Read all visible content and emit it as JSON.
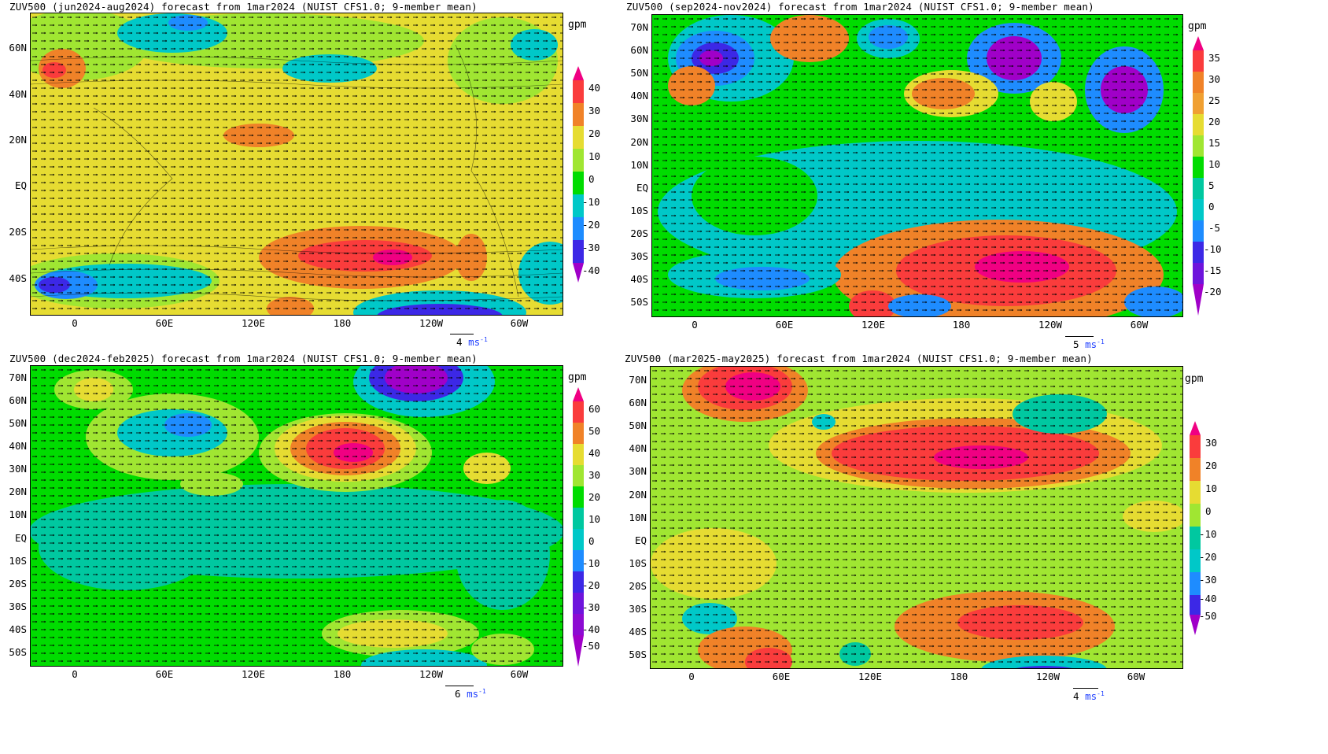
{
  "units_label": "gpm",
  "wind_unit": "ms",
  "wind_unit_exp": "-1",
  "panels": [
    {
      "title": "ZUV500 (jun2024-aug2024) forecast from 1mar2024 (NUIST CFS1.0; 9-member mean)",
      "lat_labels": [
        "60N",
        "40N",
        "20N",
        "EQ",
        "20S",
        "40S"
      ],
      "lon_labels": [
        "0",
        "60E",
        "120E",
        "180",
        "120W",
        "60W"
      ],
      "colorbar_labels": [
        "40",
        "30",
        "20",
        "10",
        "0",
        "-10",
        "-20",
        "-30",
        "-40"
      ],
      "wind_ref_value": "4",
      "colors": [
        "#a000c8",
        "#3c28e6",
        "#1e8cff",
        "#00c8c8",
        "#00dc00",
        "#a0e632",
        "#e6dc32",
        "#f08228",
        "#fa3c3c",
        "#f00082"
      ]
    },
    {
      "title": "ZUV500 (sep2024-nov2024) forecast from 1mar2024 (NUIST CFS1.0; 9-member mean)",
      "lat_labels": [
        "70N",
        "60N",
        "50N",
        "40N",
        "30N",
        "20N",
        "10N",
        "EQ",
        "10S",
        "20S",
        "30S",
        "40S",
        "50S"
      ],
      "lon_labels": [
        "0",
        "60E",
        "120E",
        "180",
        "120W",
        "60W"
      ],
      "colorbar_labels": [
        "35",
        "30",
        "25",
        "20",
        "15",
        "10",
        "5",
        "0",
        "-5",
        "-10",
        "-15",
        "-20"
      ],
      "wind_ref_value": "5",
      "colors": [
        "#a000c8",
        "#3c28e6",
        "#1e8cff",
        "#00c8c8",
        "#00dc00",
        "#a0e632",
        "#e6dc32",
        "#f08228",
        "#fa3c3c",
        "#f00082"
      ]
    },
    {
      "title": "ZUV500 (dec2024-feb2025) forecast from 1mar2024 (NUIST CFS1.0; 9-member mean)",
      "lat_labels": [
        "70N",
        "60N",
        "50N",
        "40N",
        "30N",
        "20N",
        "10N",
        "EQ",
        "10S",
        "20S",
        "30S",
        "40S",
        "50S"
      ],
      "lon_labels": [
        "0",
        "60E",
        "120E",
        "180",
        "120W",
        "60W"
      ],
      "colorbar_labels": [
        "60",
        "50",
        "40",
        "30",
        "20",
        "10",
        "0",
        "-10",
        "-20",
        "-30",
        "-40",
        "-50"
      ],
      "wind_ref_value": "6",
      "colors": [
        "#a000c8",
        "#3c28e6",
        "#1e8cff",
        "#00c8c8",
        "#00dc00",
        "#a0e632",
        "#e6dc32",
        "#f08228",
        "#fa3c3c",
        "#f00082"
      ]
    },
    {
      "title": "ZUV500 (mar2025-may2025) forecast from 1mar2024 (NUIST CFS1.0; 9-member mean)",
      "lat_labels": [
        "70N",
        "60N",
        "50N",
        "40N",
        "30N",
        "20N",
        "10N",
        "EQ",
        "10S",
        "20S",
        "30S",
        "40S",
        "50S"
      ],
      "lon_labels": [
        "0",
        "60E",
        "120E",
        "180",
        "120W",
        "60W"
      ],
      "colorbar_labels": [
        "30",
        "20",
        "10",
        "0",
        "-10",
        "-20",
        "-30",
        "-40",
        "-50"
      ],
      "wind_ref_value": "4",
      "colors": [
        "#a000c8",
        "#3c28e6",
        "#1e8cff",
        "#00c8c8",
        "#00dc00",
        "#a0e632",
        "#e6dc32",
        "#f08228",
        "#fa3c3c",
        "#f00082"
      ]
    }
  ]
}
